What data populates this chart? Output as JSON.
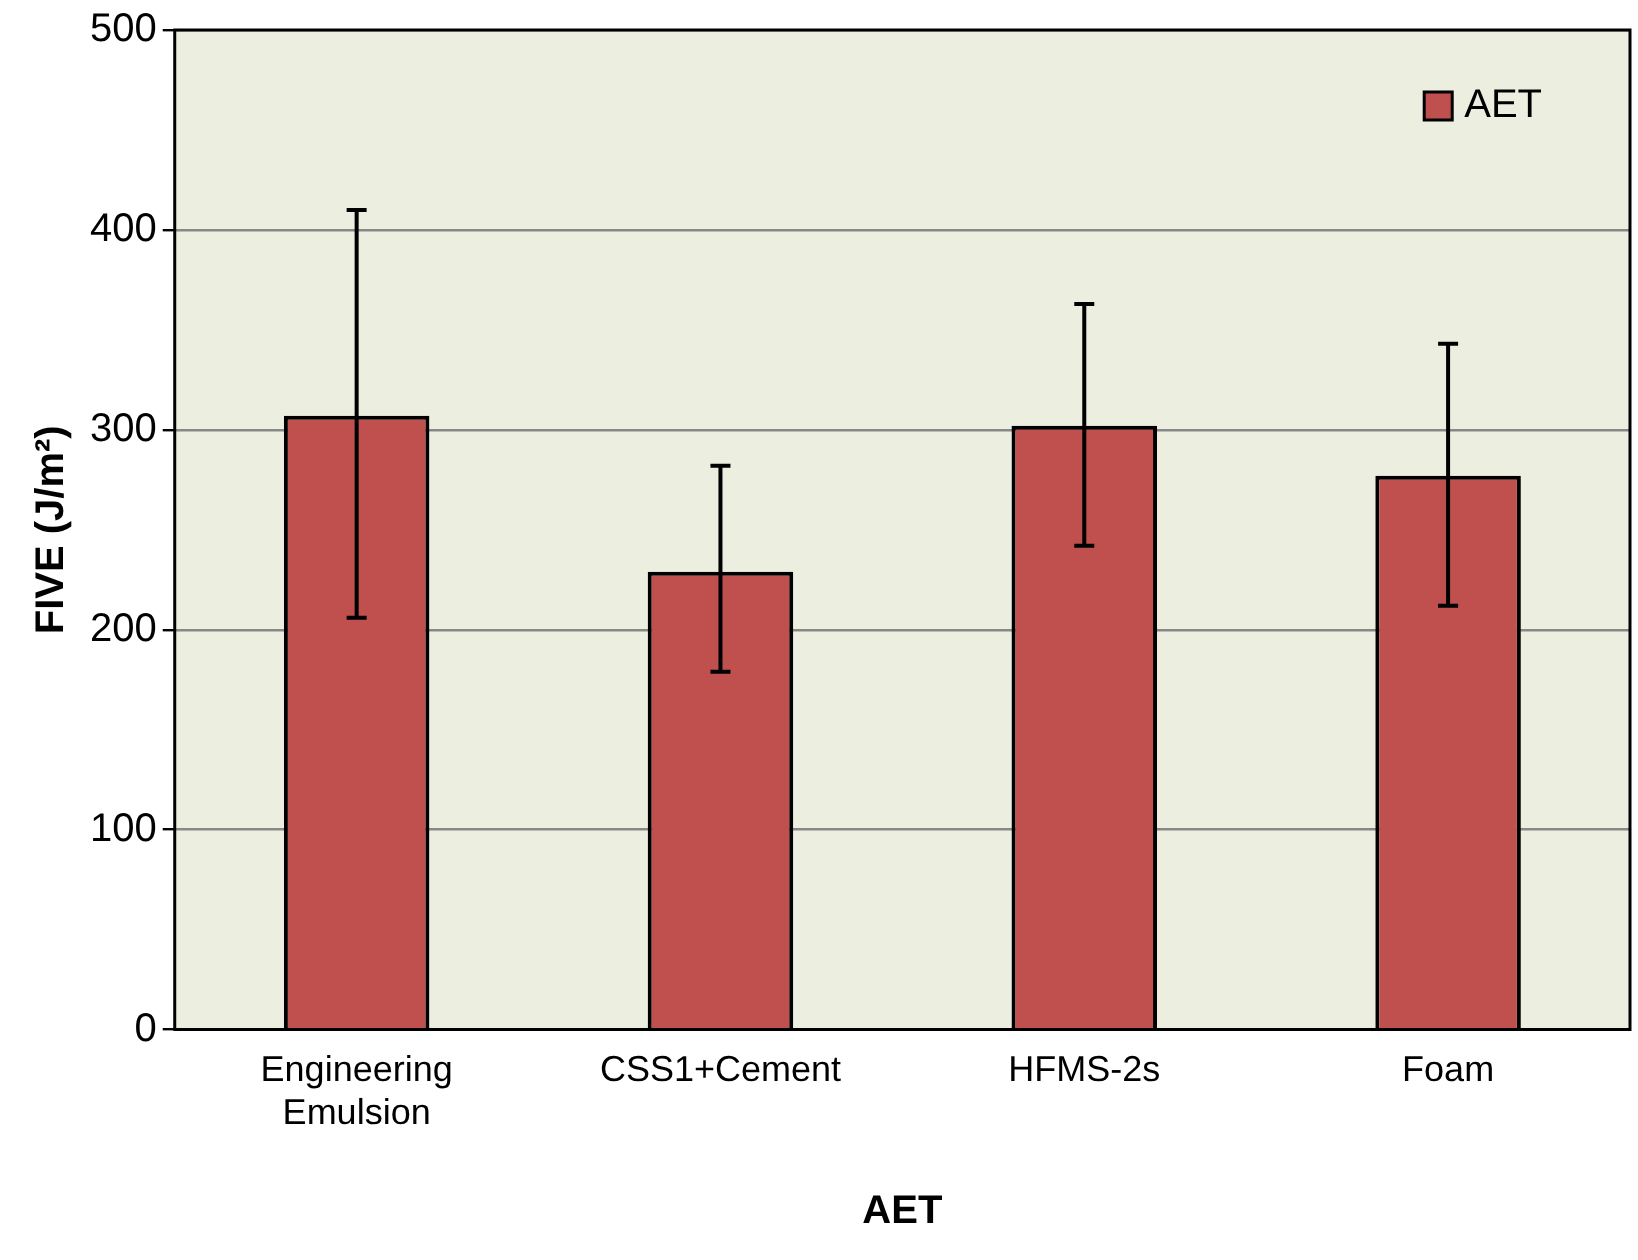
{
  "chart_data": {
    "type": "bar",
    "xlabel": "AET",
    "ylabel": "FIVE (J/m²)",
    "categories": [
      "Engineering Emulsion",
      "CSS1+Cement",
      "HFMS-2s",
      "Foam"
    ],
    "series": [
      {
        "name": "AET",
        "color": "#c0504d",
        "values": [
          307,
          229,
          302,
          277
        ],
        "errors": [
          [
            206,
            410
          ],
          [
            179,
            282
          ],
          [
            242,
            363
          ],
          [
            212,
            343
          ]
        ]
      }
    ],
    "ylim": [
      0,
      500
    ],
    "yticks": [
      0,
      100,
      200,
      300,
      400,
      500
    ],
    "grid": "y",
    "legend": "top right"
  }
}
